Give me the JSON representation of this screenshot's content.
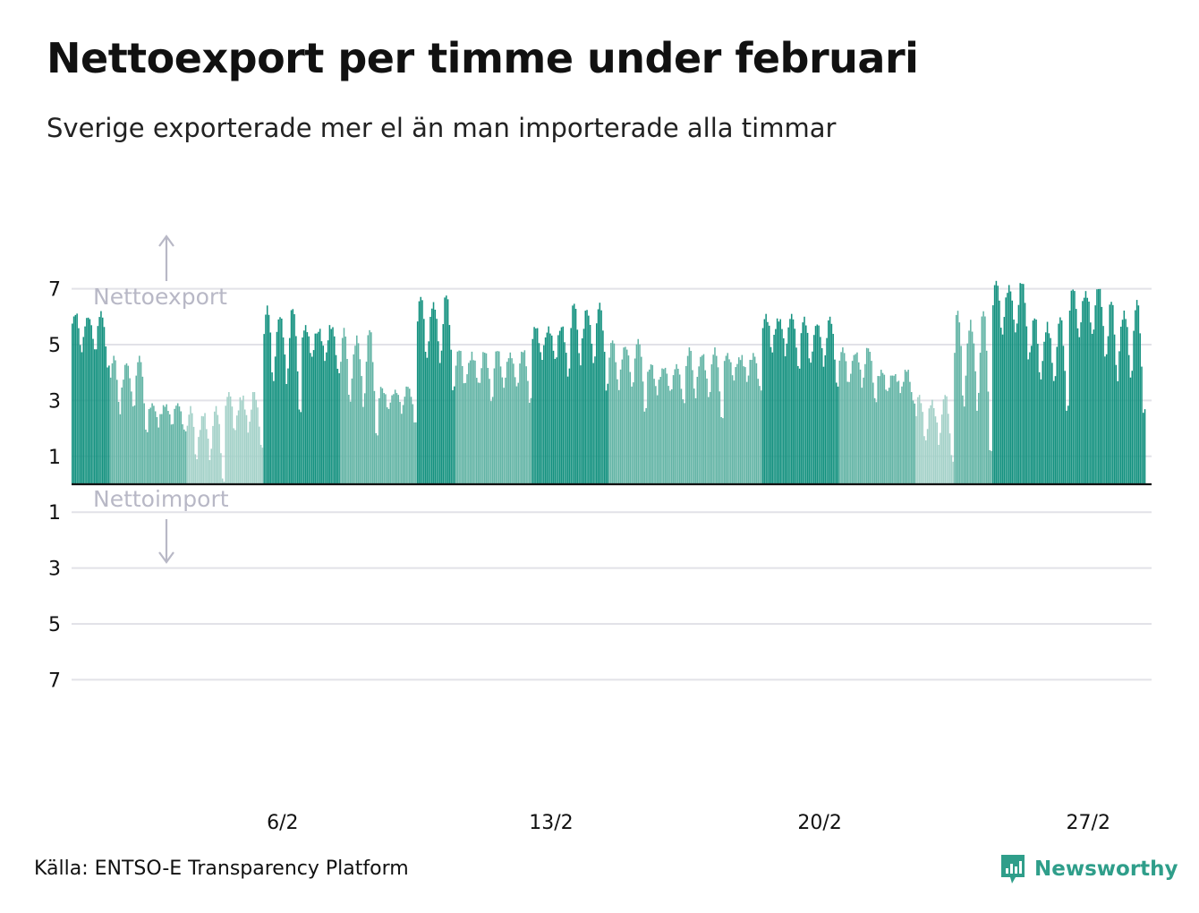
{
  "title": "Nettoexport per timme under februari",
  "subtitle": "Sverige exporterade mer el än man importerade alla timmar",
  "source": "Källa: ENTSO-E Transparency Platform",
  "brand": {
    "name": "Newsworthy",
    "color": "#2f9e8a"
  },
  "colors": {
    "dark": "#13917f",
    "mid": "#62b4a5",
    "light": "#a3d1c8",
    "grid": "#e2e2e8",
    "baseline": "#111111",
    "annotation": "#b8b8c6"
  },
  "chart_data": {
    "type": "bar",
    "title": "Nettoexport per timme under februari",
    "subtitle": "Sverige exporterade mer el än man importerade alla timmar",
    "xlabel": "",
    "ylabel": "",
    "y_range": [
      -7.5,
      7.5
    ],
    "y_ticks": [
      {
        "value": 7,
        "label": "7"
      },
      {
        "value": 5,
        "label": "5"
      },
      {
        "value": 3,
        "label": "3"
      },
      {
        "value": 1,
        "label": "1"
      },
      {
        "value": -1,
        "label": "1"
      },
      {
        "value": -3,
        "label": "3"
      },
      {
        "value": -5,
        "label": "5"
      },
      {
        "value": -7,
        "label": "7"
      }
    ],
    "x_ticks": [
      {
        "day": 6,
        "label": "6/2"
      },
      {
        "day": 13,
        "label": "13/2"
      },
      {
        "day": 20,
        "label": "20/2"
      },
      {
        "day": 27,
        "label": "27/2"
      }
    ],
    "annotations": {
      "positive": "Nettoexport",
      "negative": "Nettoimport"
    },
    "grid": true,
    "days": 28,
    "hours_per_day": 24,
    "color_rule": "darker shade for higher net export",
    "daily_profile": [
      {
        "day": 1,
        "peak": 6.2,
        "min": 4.2,
        "mean": 5.1
      },
      {
        "day": 2,
        "peak": 4.6,
        "min": 1.9,
        "mean": 3.2
      },
      {
        "day": 3,
        "peak": 2.9,
        "min": 1.9,
        "mean": 2.4
      },
      {
        "day": 4,
        "peak": 2.8,
        "min": 0.2,
        "mean": 1.5
      },
      {
        "day": 5,
        "peak": 3.3,
        "min": 1.4,
        "mean": 2.2
      },
      {
        "day": 6,
        "peak": 6.4,
        "min": 2.6,
        "mean": 4.4
      },
      {
        "day": 7,
        "peak": 5.7,
        "min": 4.1,
        "mean": 5.0
      },
      {
        "day": 8,
        "peak": 5.6,
        "min": 1.8,
        "mean": 3.4
      },
      {
        "day": 9,
        "peak": 3.5,
        "min": 2.3,
        "mean": 2.9
      },
      {
        "day": 10,
        "peak": 6.8,
        "min": 3.5,
        "mean": 5.0
      },
      {
        "day": 11,
        "peak": 4.8,
        "min": 3.0,
        "mean": 3.9
      },
      {
        "day": 12,
        "peak": 4.8,
        "min": 3.0,
        "mean": 3.9
      },
      {
        "day": 13,
        "peak": 5.7,
        "min": 4.0,
        "mean": 4.8
      },
      {
        "day": 14,
        "peak": 6.5,
        "min": 3.5,
        "mean": 4.8
      },
      {
        "day": 15,
        "peak": 5.2,
        "min": 2.7,
        "mean": 3.8
      },
      {
        "day": 16,
        "peak": 4.3,
        "min": 2.9,
        "mean": 3.6
      },
      {
        "day": 17,
        "peak": 4.9,
        "min": 2.4,
        "mean": 3.7
      },
      {
        "day": 18,
        "peak": 4.7,
        "min": 3.4,
        "mean": 4.0
      },
      {
        "day": 19,
        "peak": 6.1,
        "min": 4.2,
        "mean": 5.0
      },
      {
        "day": 20,
        "peak": 6.0,
        "min": 3.6,
        "mean": 4.7
      },
      {
        "day": 21,
        "peak": 4.9,
        "min": 3.0,
        "mean": 3.9
      },
      {
        "day": 22,
        "peak": 4.1,
        "min": 3.0,
        "mean": 3.5
      },
      {
        "day": 23,
        "peak": 3.2,
        "min": 0.9,
        "mean": 2.2
      },
      {
        "day": 24,
        "peak": 6.3,
        "min": 1.3,
        "mean": 4.0
      },
      {
        "day": 25,
        "peak": 7.3,
        "min": 4.6,
        "mean": 5.8
      },
      {
        "day": 26,
        "peak": 6.0,
        "min": 2.7,
        "mean": 4.4
      },
      {
        "day": 27,
        "peak": 7.1,
        "min": 4.6,
        "mean": 5.9
      },
      {
        "day": 28,
        "peak": 6.6,
        "min": 2.6,
        "mean": 4.5
      }
    ]
  }
}
